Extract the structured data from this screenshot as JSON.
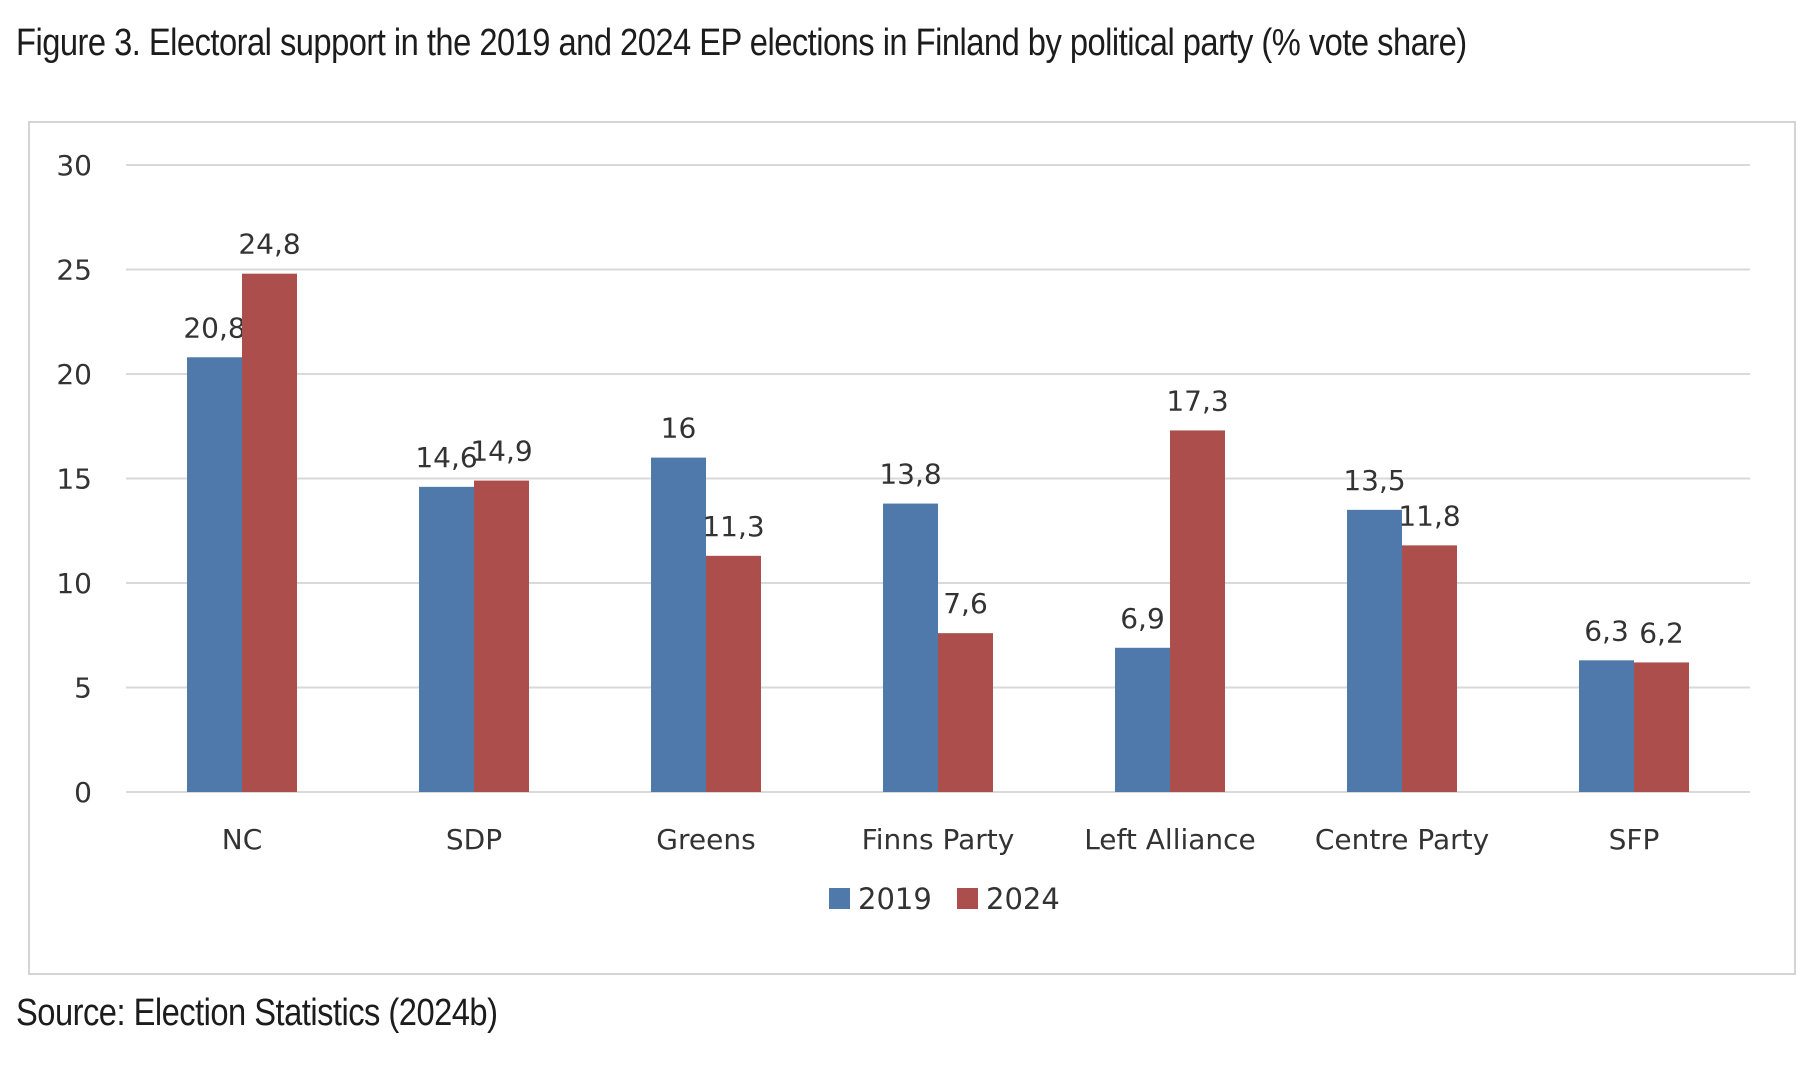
{
  "figure": {
    "title": "Figure 3. Electoral support in the 2019 and 2024 EP elections in Finland by political party (% vote share)",
    "source": "Source: Election Statistics (2024b)"
  },
  "chart_data": {
    "type": "bar",
    "title": "",
    "xlabel": "",
    "ylabel": "",
    "categories": [
      "NC",
      "SDP",
      "Greens",
      "Finns Party",
      "Left Alliance",
      "Centre Party",
      "SFP"
    ],
    "series": [
      {
        "name": "2019",
        "color": "#4f79ab",
        "values": [
          20.8,
          14.6,
          16,
          13.8,
          6.9,
          13.5,
          6.3
        ],
        "labels": [
          "20,8",
          "14,6",
          "16",
          "13,8",
          "6,9",
          "13,5",
          "6,3"
        ]
      },
      {
        "name": "2024",
        "color": "#ab4e4c",
        "values": [
          24.8,
          14.9,
          11.3,
          7.6,
          17.3,
          11.8,
          6.2
        ],
        "labels": [
          "24,8",
          "14,9",
          "11,3",
          "7,6",
          "17,3",
          "11,8",
          "6,2"
        ]
      }
    ],
    "ylim": [
      0,
      30
    ],
    "yticks": [
      0,
      5,
      10,
      15,
      20,
      25,
      30
    ],
    "grid": true,
    "legend": "bottom",
    "colors": {
      "gridline": "#d9d9d9",
      "frame": "#d4d4d4",
      "text": "#333333"
    }
  }
}
